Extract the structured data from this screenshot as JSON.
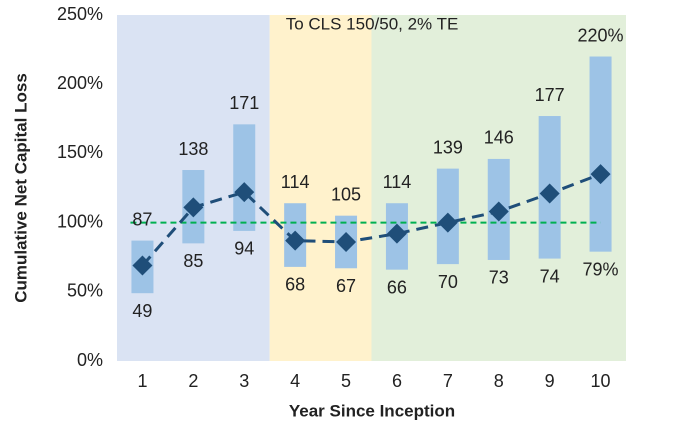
{
  "chart_data": {
    "type": "range_bar",
    "x_label": "Year Since Inception",
    "y_label": "Cumulative Net Capital Loss",
    "annotation": "To CLS 150/50, 2% TE",
    "categories": [
      "1",
      "2",
      "3",
      "4",
      "5",
      "6",
      "7",
      "8",
      "9",
      "10"
    ],
    "high": {
      "color": "#9dc3e6",
      "values": [
        87,
        138,
        171,
        114,
        105,
        114,
        139,
        146,
        177,
        220
      ],
      "value_labels": [
        "87",
        "138",
        "171",
        "114",
        "105",
        "114",
        "139",
        "146",
        "177",
        "220%"
      ]
    },
    "low": {
      "values": [
        49,
        85,
        94,
        68,
        67,
        66,
        70,
        73,
        74,
        79
      ],
      "value_labels": [
        "49",
        "85",
        "94",
        "68",
        "67",
        "66",
        "70",
        "73",
        "74",
        "79%"
      ]
    },
    "median": {
      "color": "#1f4e79",
      "values": [
        69,
        111,
        122,
        87,
        86,
        92,
        100,
        108,
        121,
        135
      ]
    },
    "reference_line": {
      "value": 100,
      "color": "#00b050"
    },
    "bands": [
      {
        "from": 0,
        "to": 2,
        "color": "#dae3f3"
      },
      {
        "from": 3,
        "to": 4,
        "color": "#fff2cc"
      },
      {
        "from": 5,
        "to": 9,
        "color": "#e2efda"
      }
    ],
    "ylim": [
      0,
      250
    ],
    "yticks": [
      {
        "value": 0,
        "label": "0%"
      },
      {
        "value": 50,
        "label": "50%"
      },
      {
        "value": 100,
        "label": "100%"
      },
      {
        "value": 150,
        "label": "150%"
      },
      {
        "value": 200,
        "label": "200%"
      },
      {
        "value": 250,
        "label": "250%"
      }
    ]
  }
}
